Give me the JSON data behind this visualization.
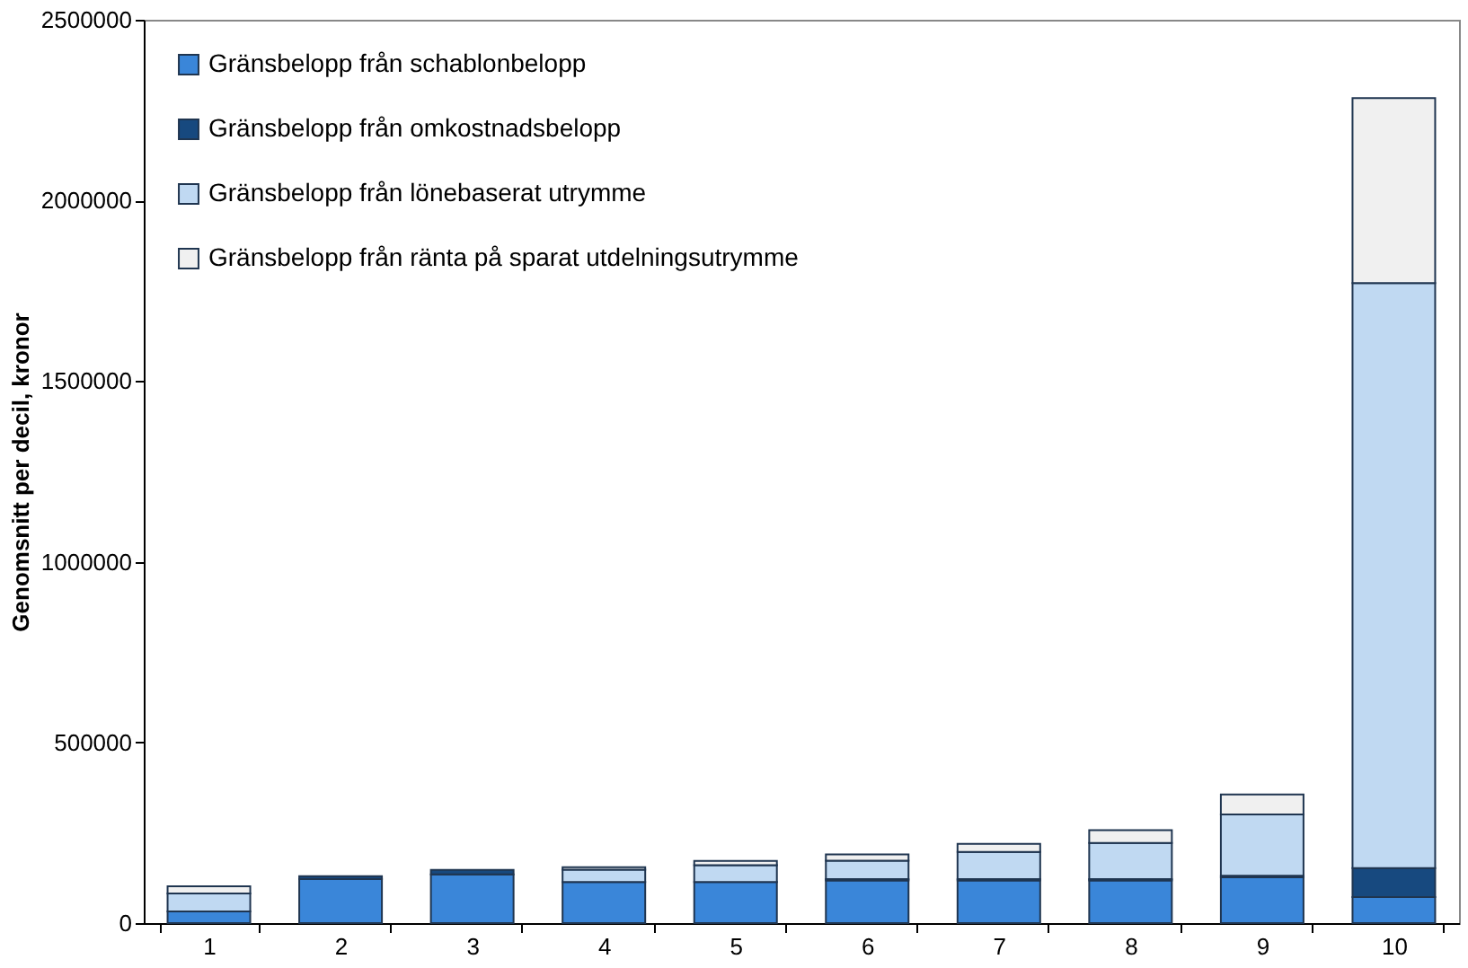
{
  "chart_data": {
    "type": "bar",
    "stacked": true,
    "ylabel": "Genomsnitt per decil, kronor",
    "categories": [
      "1",
      "2",
      "3",
      "4",
      "5",
      "6",
      "7",
      "8",
      "9",
      "10"
    ],
    "series": [
      {
        "name": "Gränsbelopp från schablonbelopp",
        "color": "#3a86d9",
        "values": [
          32000,
          122000,
          135000,
          114000,
          114000,
          118000,
          118000,
          118000,
          127000,
          72000
        ]
      },
      {
        "name": "Gränsbelopp från omkostnadsbelopp",
        "color": "#17497f",
        "values": [
          null,
          8000,
          12000,
          null,
          null,
          4000,
          4000,
          4000,
          4000,
          80000
        ]
      },
      {
        "name": "Gränsbelopp från lönebaserat utrymme",
        "color": "#c0d9f2",
        "values": [
          50000,
          0,
          0,
          34000,
          46000,
          51000,
          75000,
          100000,
          170000,
          1619000
        ]
      },
      {
        "name": "Gränsbelopp från ränta på sparat utdelningsutrymme",
        "color": "#f0f0f0",
        "values": [
          20000,
          0,
          0,
          7000,
          12000,
          17000,
          22000,
          35000,
          55000,
          512000
        ]
      }
    ],
    "ylim": [
      0,
      2500000
    ],
    "yticks": [
      0,
      500000,
      1000000,
      1500000,
      2000000,
      2500000
    ],
    "grid": false,
    "legend": "top left"
  }
}
